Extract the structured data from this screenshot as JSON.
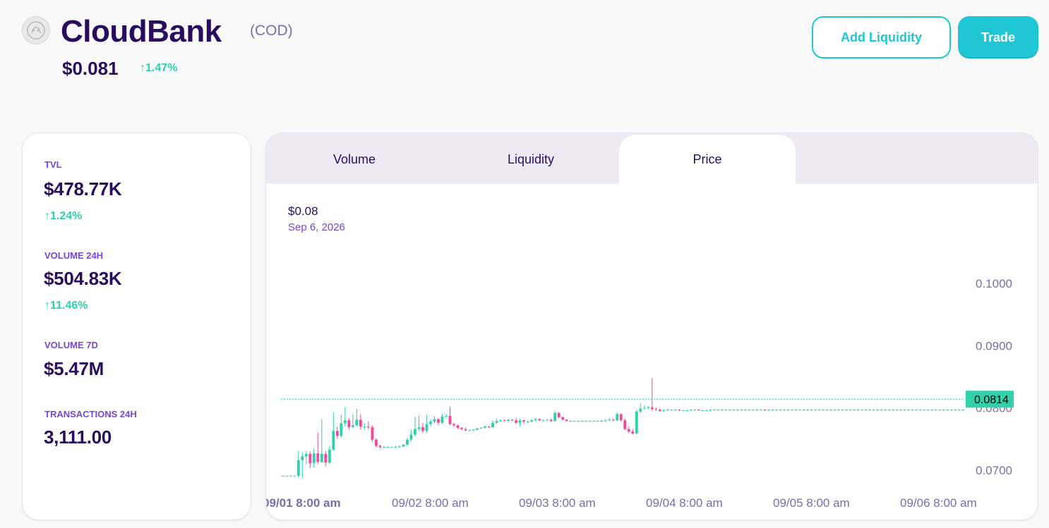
{
  "token": {
    "name": "CloudBank",
    "symbol": "(COD)",
    "price": "$0.081",
    "change": "↑1.47%",
    "logo_icon": "token-logo-icon"
  },
  "actions": {
    "add_liquidity": "Add Liquidity",
    "trade": "Trade"
  },
  "stats": {
    "tvl": {
      "label": "TVL",
      "value": "$478.77K",
      "change": "↑1.24%"
    },
    "volume24h": {
      "label": "VOLUME 24H",
      "value": "$504.83K",
      "change": "↑11.46%"
    },
    "volume7d": {
      "label": "VOLUME 7D",
      "value": "$5.47M"
    },
    "transactions24h": {
      "label": "TRANSACTIONS 24H",
      "value": "3,111.00"
    }
  },
  "tabs": [
    {
      "label": "Volume",
      "active": false
    },
    {
      "label": "Liquidity",
      "active": false
    },
    {
      "label": "Price",
      "active": true
    }
  ],
  "hover": {
    "value": "$0.08",
    "date": "Sep 6, 2026"
  },
  "colors": {
    "up": "#31d0aa",
    "down": "#ed4b9e",
    "primary": "#1fc7d4",
    "text": "#280d5f"
  },
  "chart_data": {
    "type": "candlestick",
    "current_price_label": "0.0814",
    "current_price": 0.0814,
    "y_ticks": [
      "0.1000",
      "0.0900",
      "0.0800",
      "0.0700"
    ],
    "y_tick_values": [
      0.1,
      0.09,
      0.08,
      0.07
    ],
    "ylim": [
      0.0675,
      0.106
    ],
    "x_ticks": [
      "09/01 8:00 am",
      "09/02 8:00 am",
      "09/03 8:00 am",
      "09/04 8:00 am",
      "09/05 8:00 am",
      "09/06 8:00 am"
    ],
    "candles": [
      [
        0.0691,
        0.0691,
        0.0691,
        0.0691
      ],
      [
        0.0691,
        0.0691,
        0.0691,
        0.0691
      ],
      [
        0.0691,
        0.0691,
        0.0691,
        0.0691
      ],
      [
        0.0691,
        0.0691,
        0.0691,
        0.0691
      ],
      [
        0.0691,
        0.0716,
        0.0731,
        0.0688
      ],
      [
        0.0716,
        0.0722,
        0.0729,
        0.0687
      ],
      [
        0.0722,
        0.0726,
        0.0731,
        0.071
      ],
      [
        0.0726,
        0.0711,
        0.073,
        0.0703
      ],
      [
        0.0711,
        0.0727,
        0.0736,
        0.0704
      ],
      [
        0.0727,
        0.0713,
        0.076,
        0.071
      ],
      [
        0.0713,
        0.0726,
        0.0782,
        0.0712
      ],
      [
        0.0726,
        0.0712,
        0.0731,
        0.0706
      ],
      [
        0.0712,
        0.0733,
        0.0738,
        0.071
      ],
      [
        0.0733,
        0.0763,
        0.0793,
        0.0731
      ],
      [
        0.0763,
        0.0755,
        0.077,
        0.075
      ],
      [
        0.0755,
        0.0775,
        0.079,
        0.0752
      ],
      [
        0.0775,
        0.078,
        0.0801,
        0.077
      ],
      [
        0.078,
        0.0769,
        0.0784,
        0.0765
      ],
      [
        0.0769,
        0.0772,
        0.079,
        0.0768
      ],
      [
        0.0772,
        0.0781,
        0.0799,
        0.077
      ],
      [
        0.0781,
        0.077,
        0.079,
        0.0765
      ],
      [
        0.077,
        0.077,
        0.0775,
        0.0765
      ],
      [
        0.077,
        0.0769,
        0.0778,
        0.0765
      ],
      [
        0.0769,
        0.0749,
        0.0772,
        0.0745
      ],
      [
        0.0749,
        0.0739,
        0.0751,
        0.0736
      ],
      [
        0.0739,
        0.0737,
        0.0741,
        0.0735
      ],
      [
        0.0737,
        0.0737,
        0.0739,
        0.0736
      ],
      [
        0.0737,
        0.0737,
        0.0738,
        0.0736
      ],
      [
        0.0737,
        0.0737,
        0.0738,
        0.0736
      ],
      [
        0.0737,
        0.0737,
        0.0739,
        0.0736
      ],
      [
        0.0737,
        0.0738,
        0.074,
        0.0736
      ],
      [
        0.0738,
        0.0741,
        0.0742,
        0.0737
      ],
      [
        0.0741,
        0.0749,
        0.0752,
        0.0739
      ],
      [
        0.0749,
        0.0757,
        0.0764,
        0.0746
      ],
      [
        0.0757,
        0.0766,
        0.0786,
        0.0754
      ],
      [
        0.0766,
        0.0769,
        0.0788,
        0.0763
      ],
      [
        0.0769,
        0.0763,
        0.0776,
        0.076
      ],
      [
        0.0763,
        0.0774,
        0.0789,
        0.076
      ],
      [
        0.0774,
        0.0778,
        0.0781,
        0.077
      ],
      [
        0.0778,
        0.0782,
        0.0787,
        0.0775
      ],
      [
        0.0782,
        0.0776,
        0.0783,
        0.0772
      ],
      [
        0.0776,
        0.0786,
        0.079,
        0.0774
      ],
      [
        0.0786,
        0.0787,
        0.079,
        0.0783
      ],
      [
        0.0787,
        0.0774,
        0.0802,
        0.0772
      ],
      [
        0.0774,
        0.0772,
        0.0776,
        0.077
      ],
      [
        0.0772,
        0.0768,
        0.0773,
        0.0766
      ],
      [
        0.0768,
        0.0766,
        0.0769,
        0.0764
      ],
      [
        0.0766,
        0.0764,
        0.0768,
        0.0762
      ],
      [
        0.0764,
        0.0764,
        0.0765,
        0.0763
      ],
      [
        0.0764,
        0.0765,
        0.0766,
        0.0763
      ],
      [
        0.0765,
        0.0767,
        0.0768,
        0.0764
      ],
      [
        0.0767,
        0.0768,
        0.0769,
        0.0766
      ],
      [
        0.0768,
        0.077,
        0.0772,
        0.0767
      ],
      [
        0.077,
        0.0769,
        0.0771,
        0.0768
      ],
      [
        0.0769,
        0.0776,
        0.078,
        0.0768
      ],
      [
        0.0776,
        0.0779,
        0.0782,
        0.0774
      ],
      [
        0.0779,
        0.078,
        0.0782,
        0.0777
      ],
      [
        0.078,
        0.0779,
        0.0781,
        0.0778
      ],
      [
        0.0779,
        0.0781,
        0.0782,
        0.0778
      ],
      [
        0.0781,
        0.078,
        0.0782,
        0.0779
      ],
      [
        0.078,
        0.0776,
        0.0784,
        0.0774
      ],
      [
        0.0776,
        0.078,
        0.0783,
        0.077
      ],
      [
        0.078,
        0.0778,
        0.0781,
        0.0775
      ],
      [
        0.0778,
        0.0778,
        0.078,
        0.0776
      ],
      [
        0.0778,
        0.078,
        0.0782,
        0.0777
      ],
      [
        0.078,
        0.0782,
        0.0784,
        0.0779
      ],
      [
        0.0782,
        0.078,
        0.0783,
        0.0779
      ],
      [
        0.078,
        0.078,
        0.0782,
        0.0779
      ],
      [
        0.078,
        0.0781,
        0.0782,
        0.0779
      ],
      [
        0.0781,
        0.0779,
        0.0782,
        0.0777
      ],
      [
        0.0779,
        0.0792,
        0.0795,
        0.0778
      ],
      [
        0.0792,
        0.0785,
        0.0793,
        0.0783
      ],
      [
        0.0785,
        0.0781,
        0.0787,
        0.078
      ],
      [
        0.0781,
        0.0779,
        0.0782,
        0.0778
      ],
      [
        0.0779,
        0.0779,
        0.078,
        0.0778
      ],
      [
        0.0779,
        0.0779,
        0.078,
        0.0778
      ],
      [
        0.0779,
        0.0779,
        0.078,
        0.0778
      ],
      [
        0.0779,
        0.0779,
        0.078,
        0.0778
      ],
      [
        0.0779,
        0.0779,
        0.078,
        0.0778
      ],
      [
        0.0779,
        0.0779,
        0.078,
        0.0778
      ],
      [
        0.0779,
        0.0779,
        0.078,
        0.0778
      ],
      [
        0.0779,
        0.0779,
        0.078,
        0.0778
      ],
      [
        0.0779,
        0.0779,
        0.0781,
        0.0778
      ],
      [
        0.0779,
        0.078,
        0.0782,
        0.0778
      ],
      [
        0.078,
        0.0781,
        0.0784,
        0.0779
      ],
      [
        0.0781,
        0.078,
        0.0783,
        0.0779
      ],
      [
        0.078,
        0.079,
        0.0793,
        0.0779
      ],
      [
        0.079,
        0.078,
        0.0791,
        0.0778
      ],
      [
        0.078,
        0.0766,
        0.0783,
        0.0764
      ],
      [
        0.0766,
        0.0762,
        0.077,
        0.076
      ],
      [
        0.0762,
        0.0759,
        0.0766,
        0.0757
      ],
      [
        0.0759,
        0.0794,
        0.0797,
        0.0757
      ],
      [
        0.0794,
        0.0799,
        0.0807,
        0.0792
      ],
      [
        0.0799,
        0.08,
        0.0804,
        0.0797
      ],
      [
        0.08,
        0.0801,
        0.0803,
        0.0798
      ],
      [
        0.0801,
        0.0798,
        0.0848,
        0.0795
      ],
      [
        0.0798,
        0.0797,
        0.0801,
        0.0796
      ],
      [
        0.0797,
        0.0795,
        0.0799,
        0.0794
      ],
      [
        0.0795,
        0.0796,
        0.0798,
        0.0794
      ],
      [
        0.0796,
        0.0797,
        0.0799,
        0.0795
      ],
      [
        0.0797,
        0.0797,
        0.0798,
        0.0796
      ],
      [
        0.0797,
        0.0797,
        0.0798,
        0.0796
      ],
      [
        0.0797,
        0.0796,
        0.0798,
        0.0795
      ],
      [
        0.0796,
        0.0796,
        0.0797,
        0.0795
      ],
      [
        0.0796,
        0.0796,
        0.0797,
        0.0795
      ],
      [
        0.0796,
        0.0797,
        0.0798,
        0.0795
      ],
      [
        0.0797,
        0.0797,
        0.0798,
        0.0796
      ],
      [
        0.0797,
        0.0796,
        0.0798,
        0.0795
      ],
      [
        0.0796,
        0.0796,
        0.0797,
        0.0795
      ],
      [
        0.0796,
        0.0796,
        0.0797,
        0.0795
      ],
      [
        0.0796,
        0.0797,
        0.0798,
        0.0795
      ],
      [
        0.0797,
        0.0797,
        0.0798,
        0.0796
      ],
      [
        0.0797,
        0.0797,
        0.0798,
        0.0796
      ],
      [
        0.0797,
        0.0797,
        0.0798,
        0.0796
      ],
      [
        0.0797,
        0.0797,
        0.0798,
        0.0796
      ],
      [
        0.0797,
        0.0797,
        0.0798,
        0.0796
      ],
      [
        0.0797,
        0.0797,
        0.0798,
        0.0796
      ],
      [
        0.0797,
        0.0797,
        0.0798,
        0.0796
      ],
      [
        0.0797,
        0.0797,
        0.0798,
        0.0796
      ],
      [
        0.0797,
        0.0797,
        0.0798,
        0.0796
      ],
      [
        0.0797,
        0.0797,
        0.0798,
        0.0796
      ],
      [
        0.0797,
        0.0797,
        0.0798,
        0.0796
      ],
      [
        0.0797,
        0.0797,
        0.0798,
        0.0796
      ],
      [
        0.0797,
        0.0797,
        0.0798,
        0.0796
      ],
      [
        0.0797,
        0.0796,
        0.0798,
        0.0795
      ],
      [
        0.0796,
        0.0797,
        0.0798,
        0.0795
      ],
      [
        0.0797,
        0.0797,
        0.0798,
        0.0796
      ],
      [
        0.0797,
        0.0797,
        0.0798,
        0.0796
      ],
      [
        0.0797,
        0.0797,
        0.0798,
        0.0796
      ],
      [
        0.0797,
        0.0797,
        0.0798,
        0.0796
      ],
      [
        0.0797,
        0.0797,
        0.0798,
        0.0796
      ],
      [
        0.0797,
        0.0797,
        0.0798,
        0.0796
      ],
      [
        0.0797,
        0.0797,
        0.0798,
        0.0796
      ],
      [
        0.0797,
        0.0797,
        0.0798,
        0.0796
      ],
      [
        0.0797,
        0.0797,
        0.0798,
        0.0796
      ],
      [
        0.0797,
        0.0797,
        0.0798,
        0.0796
      ],
      [
        0.0797,
        0.0797,
        0.0798,
        0.0796
      ],
      [
        0.0797,
        0.0797,
        0.0798,
        0.0796
      ],
      [
        0.0797,
        0.0797,
        0.0798,
        0.0796
      ],
      [
        0.0797,
        0.0797,
        0.0798,
        0.0796
      ],
      [
        0.0797,
        0.0797,
        0.0798,
        0.0796
      ],
      [
        0.0797,
        0.0797,
        0.0798,
        0.0796
      ],
      [
        0.0797,
        0.0797,
        0.0798,
        0.0796
      ],
      [
        0.0797,
        0.0797,
        0.0798,
        0.0796
      ],
      [
        0.0797,
        0.0797,
        0.0798,
        0.0796
      ],
      [
        0.0797,
        0.0797,
        0.0798,
        0.0796
      ],
      [
        0.0797,
        0.0797,
        0.0798,
        0.0796
      ],
      [
        0.0797,
        0.0797,
        0.0798,
        0.0796
      ],
      [
        0.0797,
        0.0797,
        0.0798,
        0.0796
      ],
      [
        0.0797,
        0.0797,
        0.0798,
        0.0796
      ],
      [
        0.0797,
        0.0797,
        0.0798,
        0.0796
      ],
      [
        0.0797,
        0.0797,
        0.0798,
        0.0796
      ],
      [
        0.0797,
        0.0797,
        0.0798,
        0.0796
      ],
      [
        0.0797,
        0.0797,
        0.0798,
        0.0796
      ],
      [
        0.0797,
        0.0797,
        0.0798,
        0.0796
      ],
      [
        0.0797,
        0.0797,
        0.0798,
        0.0796
      ],
      [
        0.0797,
        0.0797,
        0.0798,
        0.0796
      ],
      [
        0.0797,
        0.0797,
        0.0798,
        0.0796
      ],
      [
        0.0797,
        0.0797,
        0.0798,
        0.0796
      ],
      [
        0.0797,
        0.0797,
        0.0798,
        0.0796
      ],
      [
        0.0797,
        0.0797,
        0.0798,
        0.0796
      ],
      [
        0.0797,
        0.0797,
        0.0798,
        0.0796
      ],
      [
        0.0797,
        0.0797,
        0.0798,
        0.0796
      ],
      [
        0.0797,
        0.0797,
        0.0798,
        0.0796
      ],
      [
        0.0797,
        0.0797,
        0.0798,
        0.0796
      ],
      [
        0.0797,
        0.0797,
        0.0798,
        0.0796
      ],
      [
        0.0797,
        0.0797,
        0.0798,
        0.0796
      ],
      [
        0.0797,
        0.0797,
        0.0798,
        0.0796
      ],
      [
        0.0797,
        0.0797,
        0.0798,
        0.0796
      ],
      [
        0.0797,
        0.0797,
        0.0798,
        0.0796
      ],
      [
        0.0797,
        0.0797,
        0.0798,
        0.0796
      ],
      [
        0.0797,
        0.0797,
        0.0798,
        0.0796
      ],
      [
        0.0797,
        0.0797,
        0.0798,
        0.0796
      ],
      [
        0.0797,
        0.0797,
        0.0798,
        0.0796
      ],
      [
        0.0797,
        0.0797,
        0.0798,
        0.0796
      ],
      [
        0.0797,
        0.0797,
        0.0798,
        0.0796
      ]
    ]
  }
}
